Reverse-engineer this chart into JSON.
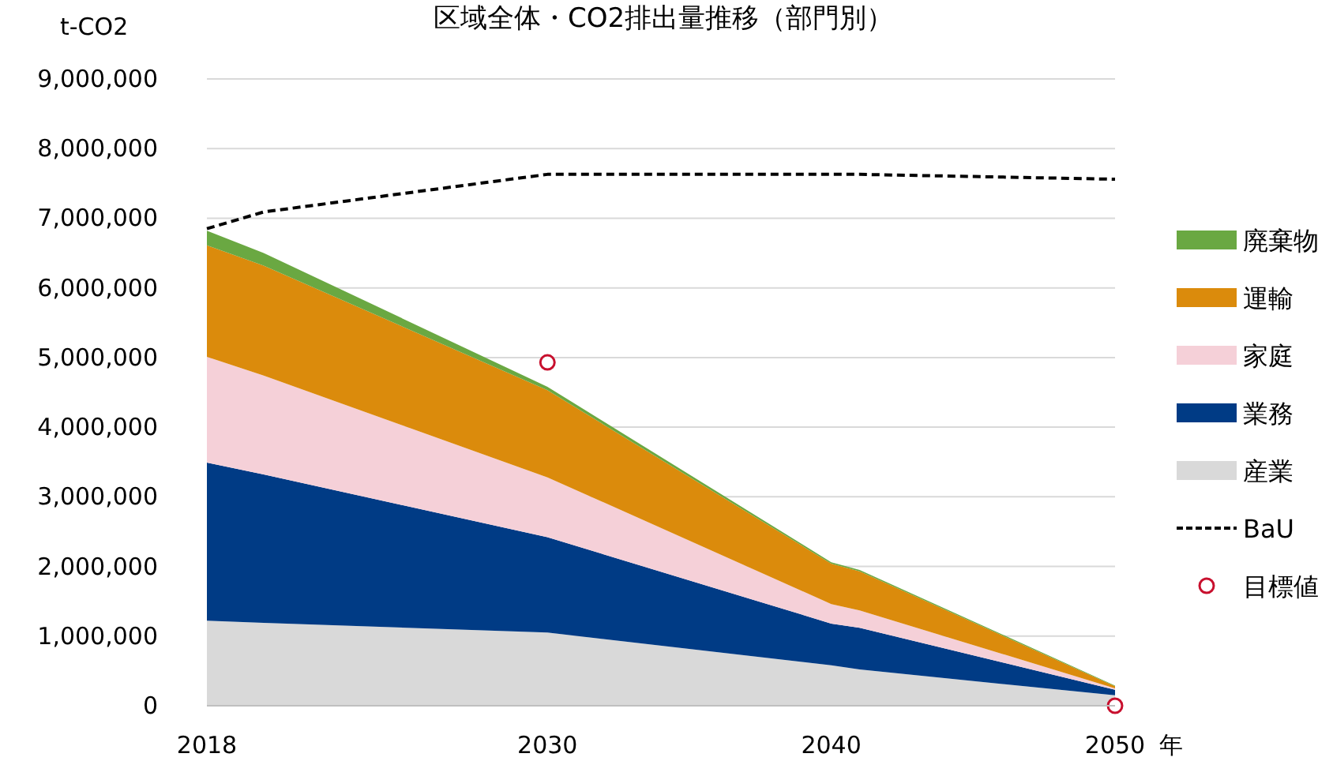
{
  "chart_data": {
    "type": "area",
    "title": "区域全体・CO2排出量推移（部門別）",
    "ylabel": "t-CO2",
    "xlabel": "年",
    "stacked": true,
    "x": [
      2018,
      2020,
      2030,
      2040,
      2041,
      2050
    ],
    "series": [
      {
        "name": "産業",
        "color": "#d9d9d9",
        "values": [
          1220000,
          1190000,
          1050000,
          580000,
          520000,
          150000
        ]
      },
      {
        "name": "業務",
        "color": "#003b85",
        "values": [
          2270000,
          2130000,
          1370000,
          600000,
          600000,
          80000
        ]
      },
      {
        "name": "家庭",
        "color": "#f5d0d8",
        "values": [
          1520000,
          1420000,
          860000,
          280000,
          250000,
          20000
        ]
      },
      {
        "name": "運輸",
        "color": "#db8b0c",
        "values": [
          1600000,
          1580000,
          1250000,
          580000,
          560000,
          30000
        ]
      },
      {
        "name": "廃棄物",
        "color": "#6aa842",
        "values": [
          210000,
          180000,
          50000,
          20000,
          20000,
          10000
        ]
      },
      {
        "name": "BaU",
        "type": "line",
        "line_style": "dashed",
        "color": "#000000",
        "values": [
          6850000,
          7090000,
          7630000,
          7630000,
          7630000,
          7560000
        ]
      },
      {
        "name": "目標値",
        "type": "scatter",
        "marker": "circle",
        "color": "#c8102e",
        "x": [
          2030,
          2050
        ],
        "values": [
          4930000,
          0
        ]
      }
    ],
    "xlim": [
      2018,
      2050
    ],
    "xticks": [
      2018,
      2030,
      2040,
      2050
    ],
    "ylim": [
      0,
      9000000
    ],
    "yticks": [
      0,
      {
        "value": 1000000,
        "label": "1,000,000"
      },
      {
        "value": 2000000,
        "label": "2,000,000"
      },
      {
        "value": 3000000,
        "label": "3,000,000"
      },
      {
        "value": 4000000,
        "label": "4,000,000"
      },
      {
        "value": 5000000,
        "label": "5,000,000"
      },
      {
        "value": 6000000,
        "label": "6,000,000"
      },
      {
        "value": 7000000,
        "label": "7,000,000"
      },
      {
        "value": 8000000,
        "label": "8,000,000"
      },
      {
        "value": 9000000,
        "label": "9,000,000"
      }
    ],
    "grid": "y",
    "legend": "right"
  }
}
